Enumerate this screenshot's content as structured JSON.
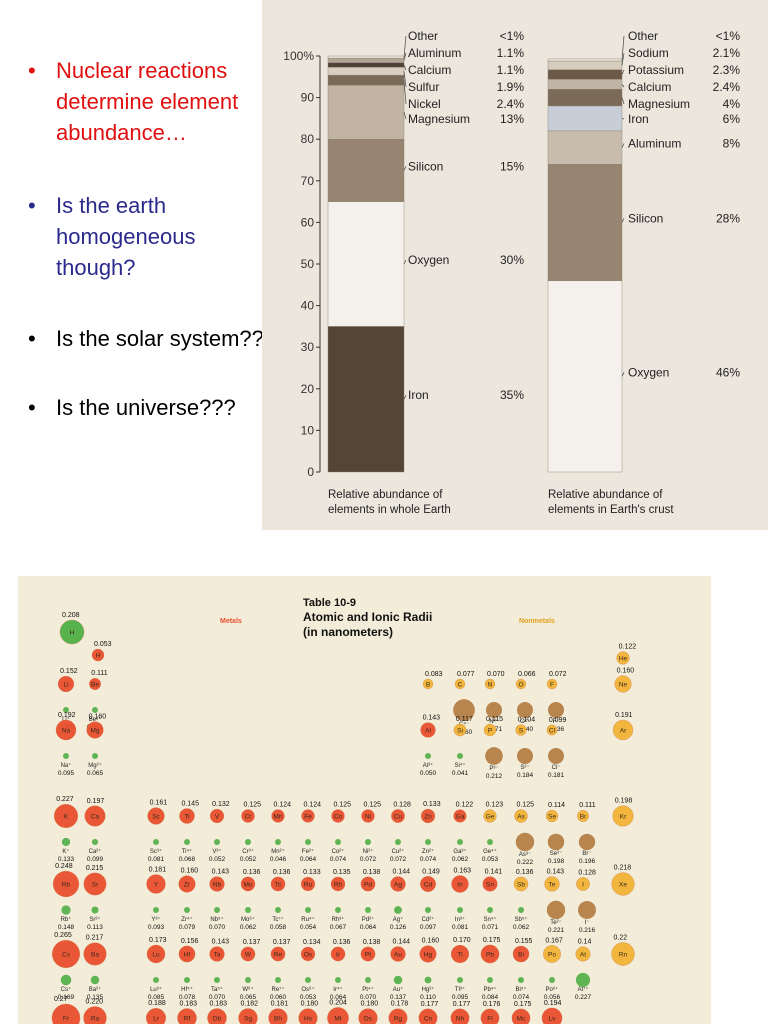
{
  "bullets": [
    {
      "text": "Nuclear reactions determine element abundance…",
      "color": "#e01010"
    },
    {
      "text": "Is the earth homogeneous though?",
      "color": "#2a2a8c"
    },
    {
      "text": "Is the solar system??",
      "color": "#000000"
    },
    {
      "text": "Is the universe???",
      "color": "#000000"
    }
  ],
  "chart_data": [
    {
      "type": "bar",
      "stacked": true,
      "caption": "Relative abundance of elements in whole Earth",
      "ylim": [
        0,
        100
      ],
      "yticks": [
        0,
        10,
        20,
        30,
        40,
        50,
        60,
        70,
        80,
        90,
        100
      ],
      "ytick_suffix_top": "%",
      "segments": [
        {
          "name": "Iron",
          "label": "35%",
          "value": 35,
          "color": "#554535"
        },
        {
          "name": "Oxygen",
          "label": "30%",
          "value": 30,
          "color": "#f4f1ec"
        },
        {
          "name": "Silicon",
          "label": "15%",
          "value": 15,
          "color": "#978571"
        },
        {
          "name": "Magnesium",
          "label": "13%",
          "value": 13,
          "color": "#c2b4a2"
        },
        {
          "name": "Nickel",
          "label": "2.4%",
          "value": 2.4,
          "color": "#7b6a58"
        },
        {
          "name": "Sulfur",
          "label": "1.9%",
          "value": 1.9,
          "color": "#d9cfc1"
        },
        {
          "name": "Calcium",
          "label": "1.1%",
          "value": 1.1,
          "color": "#4f4236"
        },
        {
          "name": "Aluminum",
          "label": "1.1%",
          "value": 1.1,
          "color": "#b3a593"
        },
        {
          "name": "Other",
          "label": "<1%",
          "value": 0.5,
          "color": "#ece6dd"
        }
      ]
    },
    {
      "type": "bar",
      "stacked": true,
      "caption": "Relative abundance of elements in Earth's crust",
      "ylim": [
        0,
        100
      ],
      "segments": [
        {
          "name": "Oxygen",
          "label": "46%",
          "value": 46,
          "color": "#f4f1ec"
        },
        {
          "name": "Silicon",
          "label": "28%",
          "value": 28,
          "color": "#978571"
        },
        {
          "name": "Aluminum",
          "label": "8%",
          "value": 8,
          "color": "#c8bcad"
        },
        {
          "name": "Iron",
          "label": "6%",
          "value": 6,
          "color": "#c7ced8"
        },
        {
          "name": "Magnesium",
          "label": "4%",
          "value": 4,
          "color": "#7b6a58"
        },
        {
          "name": "Calcium",
          "label": "2.4%",
          "value": 2.4,
          "color": "#bfb4a6"
        },
        {
          "name": "Potassium",
          "label": "2.3%",
          "value": 2.3,
          "color": "#6c5a48"
        },
        {
          "name": "Sodium",
          "label": "2.1%",
          "value": 2.1,
          "color": "#d6cdbf"
        },
        {
          "name": "Other",
          "label": "<1%",
          "value": 0.5,
          "color": "#ece6dd"
        }
      ]
    }
  ],
  "table": {
    "title_line1": "Table 10-9",
    "title_line2": "Atomic and Ionic Radii",
    "title_line3": "(in nanometers)",
    "metals_label": "Metals",
    "nonmetals_label": "Nonmetals",
    "colors": {
      "metal": "#e9502f",
      "nonmetal": "#f2b437",
      "cation": "#4fae46",
      "anion": "#b37a3f",
      "hydrogen_ion": "#4fae46"
    },
    "rows": [
      {
        "atoms": [
          {
            "sym": "H",
            "r": "0.208"
          },
          {
            "sym": "H",
            "r": "0.053"
          },
          {
            "sym": "He",
            "r": "0.122"
          }
        ]
      },
      {
        "atoms": [
          {
            "sym": "Li",
            "r": "0.152"
          },
          {
            "sym": "Be",
            "r": "0.111"
          },
          {
            "sym": "B",
            "r": "0.083"
          },
          {
            "sym": "C",
            "r": "0.077"
          },
          {
            "sym": "N",
            "r": "0.070"
          },
          {
            "sym": "O",
            "r": "0.066"
          },
          {
            "sym": "F",
            "r": "0.072"
          },
          {
            "sym": "Ne",
            "r": "0.160"
          }
        ],
        "ions": [
          {
            "sym": "Li⁺",
            "r": "0.068"
          },
          {
            "sym": "Be²⁺",
            "r": "0.031"
          },
          {
            "sym": "C⁴⁻",
            "r": "0.260"
          },
          {
            "sym": "N³⁻",
            "r": "0.171"
          },
          {
            "sym": "O²⁻",
            "r": "0.140"
          },
          {
            "sym": "F⁻",
            "r": "0.136"
          }
        ]
      },
      {
        "atoms": [
          {
            "sym": "Na",
            "r": "0.192"
          },
          {
            "sym": "Mg",
            "r": "0.160"
          },
          {
            "sym": "Al",
            "r": "0.143"
          },
          {
            "sym": "Si",
            "r": "0.117"
          },
          {
            "sym": "P",
            "r": "0.115"
          },
          {
            "sym": "S",
            "r": "0.104"
          },
          {
            "sym": "Cl",
            "r": "0.099"
          },
          {
            "sym": "Ar",
            "r": "0.191"
          }
        ],
        "ions": [
          {
            "sym": "Na⁺",
            "r": "0.095"
          },
          {
            "sym": "Mg²⁺",
            "r": "0.065"
          },
          {
            "sym": "Al³⁺",
            "r": "0.050"
          },
          {
            "sym": "Si⁴⁺",
            "r": "0.041"
          },
          {
            "sym": "P³⁻",
            "r": "0.212"
          },
          {
            "sym": "S²⁻",
            "r": "0.184"
          },
          {
            "sym": "Cl⁻",
            "r": "0.181"
          }
        ]
      },
      {
        "atoms": [
          {
            "sym": "K",
            "r": "0.227"
          },
          {
            "sym": "Ca",
            "r": "0.197"
          },
          {
            "sym": "Sc",
            "r": "0.161"
          },
          {
            "sym": "Ti",
            "r": "0.145"
          },
          {
            "sym": "V",
            "r": "0.132"
          },
          {
            "sym": "Cr",
            "r": "0.125"
          },
          {
            "sym": "Mn",
            "r": "0.124"
          },
          {
            "sym": "Fe",
            "r": "0.124"
          },
          {
            "sym": "Co",
            "r": "0.125"
          },
          {
            "sym": "Ni",
            "r": "0.125"
          },
          {
            "sym": "Cu",
            "r": "0.128"
          },
          {
            "sym": "Zn",
            "r": "0.133"
          },
          {
            "sym": "Ga",
            "r": "0.122"
          },
          {
            "sym": "Ge",
            "r": "0.123"
          },
          {
            "sym": "As",
            "r": "0.125"
          },
          {
            "sym": "Se",
            "r": "0.114"
          },
          {
            "sym": "Br",
            "r": "0.111"
          },
          {
            "sym": "Kr",
            "r": "0.198"
          }
        ],
        "ions": [
          {
            "sym": "K⁺",
            "r": "0.133"
          },
          {
            "sym": "Ca²⁺",
            "r": "0.099"
          },
          {
            "sym": "Sc³⁺",
            "r": "0.081"
          },
          {
            "sym": "Ti⁴⁺",
            "r": "0.068"
          },
          {
            "sym": "V³⁺",
            "r": "0.052"
          },
          {
            "sym": "Cr³⁺",
            "r": "0.052"
          },
          {
            "sym": "Mn²⁺",
            "r": "0.046"
          },
          {
            "sym": "Fe²⁺",
            "r": "0.064"
          },
          {
            "sym": "Co²⁺",
            "r": "0.074"
          },
          {
            "sym": "Ni²⁺",
            "r": "0.072"
          },
          {
            "sym": "Cu²⁺",
            "r": "0.072"
          },
          {
            "sym": "Zn²⁺",
            "r": "0.074"
          },
          {
            "sym": "Ga³⁺",
            "r": "0.062"
          },
          {
            "sym": "Ge⁴⁺",
            "r": "0.053"
          },
          {
            "sym": "As³⁻",
            "r": "0.222"
          },
          {
            "sym": "Se²⁻",
            "r": "0.198"
          },
          {
            "sym": "Br⁻",
            "r": "0.196"
          }
        ]
      },
      {
        "atoms": [
          {
            "sym": "Rb",
            "r": "0.248"
          },
          {
            "sym": "Sr",
            "r": "0.215"
          },
          {
            "sym": "Y",
            "r": "0.181"
          },
          {
            "sym": "Zr",
            "r": "0.160"
          },
          {
            "sym": "Nb",
            "r": "0.143"
          },
          {
            "sym": "Mo",
            "r": "0.136"
          },
          {
            "sym": "Tc",
            "r": "0.136"
          },
          {
            "sym": "Ru",
            "r": "0.133"
          },
          {
            "sym": "Rh",
            "r": "0.135"
          },
          {
            "sym": "Pd",
            "r": "0.138"
          },
          {
            "sym": "Ag",
            "r": "0.144"
          },
          {
            "sym": "Cd",
            "r": "0.149"
          },
          {
            "sym": "In",
            "r": "0.163"
          },
          {
            "sym": "Sn",
            "r": "0.141"
          },
          {
            "sym": "Sb",
            "r": "0.136"
          },
          {
            "sym": "Te",
            "r": "0.143"
          },
          {
            "sym": "I",
            "r": "0.128"
          },
          {
            "sym": "Xe",
            "r": "0.218"
          }
        ],
        "ions": [
          {
            "sym": "Rb⁺",
            "r": "0.148"
          },
          {
            "sym": "Sr²⁺",
            "r": "0.113"
          },
          {
            "sym": "Y³⁺",
            "r": "0.093"
          },
          {
            "sym": "Zr⁴⁺",
            "r": "0.079"
          },
          {
            "sym": "Nb⁵⁺",
            "r": "0.070"
          },
          {
            "sym": "Mo⁶⁺",
            "r": "0.062"
          },
          {
            "sym": "Tc⁷⁺",
            "r": "0.058"
          },
          {
            "sym": "Ru⁴⁺",
            "r": "0.054"
          },
          {
            "sym": "Rh³⁺",
            "r": "0.067"
          },
          {
            "sym": "Pd²⁺",
            "r": "0.064"
          },
          {
            "sym": "Ag⁺",
            "r": "0.126"
          },
          {
            "sym": "Cd²⁺",
            "r": "0.097"
          },
          {
            "sym": "In³⁺",
            "r": "0.081"
          },
          {
            "sym": "Sn⁴⁺",
            "r": "0.071"
          },
          {
            "sym": "Sb⁵⁺",
            "r": "0.062"
          },
          {
            "sym": "Te²⁻",
            "r": "0.221"
          },
          {
            "sym": "I⁻",
            "r": "0.216"
          }
        ]
      },
      {
        "atoms": [
          {
            "sym": "Cs",
            "r": "0.265"
          },
          {
            "sym": "Ba",
            "r": "0.217"
          },
          {
            "sym": "Lu",
            "r": "0.173"
          },
          {
            "sym": "Hf",
            "r": "0.156"
          },
          {
            "sym": "Ta",
            "r": "0.143"
          },
          {
            "sym": "W",
            "r": "0.137"
          },
          {
            "sym": "Re",
            "r": "0.137"
          },
          {
            "sym": "Os",
            "r": "0.134"
          },
          {
            "sym": "Ir",
            "r": "0.136"
          },
          {
            "sym": "Pt",
            "r": "0.138"
          },
          {
            "sym": "Au",
            "r": "0.144"
          },
          {
            "sym": "Hg",
            "r": "0.160"
          },
          {
            "sym": "Tl",
            "r": "0.170"
          },
          {
            "sym": "Pb",
            "r": "0.175"
          },
          {
            "sym": "Bi",
            "r": "0.155"
          },
          {
            "sym": "Po",
            "r": "0.167"
          },
          {
            "sym": "At",
            "r": "0.14"
          },
          {
            "sym": "Rn",
            "r": "0.22"
          }
        ],
        "ions": [
          {
            "sym": "Cs⁺",
            "r": "0.169"
          },
          {
            "sym": "Ba²⁺",
            "r": "0.135"
          },
          {
            "sym": "Lu³⁺",
            "r": "0.085"
          },
          {
            "sym": "Hf⁴⁺",
            "r": "0.078"
          },
          {
            "sym": "Ta⁵⁺",
            "r": "0.070"
          },
          {
            "sym": "W⁶⁺",
            "r": "0.065"
          },
          {
            "sym": "Re⁷⁺",
            "r": "0.060"
          },
          {
            "sym": "Os⁶⁺",
            "r": "0.053"
          },
          {
            "sym": "Ir⁴⁺",
            "r": "0.064"
          },
          {
            "sym": "Pt⁴⁺",
            "r": "0.070"
          },
          {
            "sym": "Au⁺",
            "r": "0.137"
          },
          {
            "sym": "Hg²⁺",
            "r": "0.110"
          },
          {
            "sym": "Tl³⁺",
            "r": "0.095"
          },
          {
            "sym": "Pb⁴⁺",
            "r": "0.084"
          },
          {
            "sym": "Bi⁵⁺",
            "r": "0.074"
          },
          {
            "sym": "Po⁶⁺",
            "r": "0.056"
          },
          {
            "sym": "At⁷⁺",
            "r": "0.227"
          }
        ]
      },
      {
        "atoms": [
          {
            "sym": "Fr",
            "r": "0.27"
          },
          {
            "sym": "Ra",
            "r": "0.220"
          },
          {
            "sym": "Lr",
            "r": "0.188"
          },
          {
            "sym": "Rf",
            "r": "0.183"
          },
          {
            "sym": "Db",
            "r": "0.183"
          },
          {
            "sym": "Sg",
            "r": "0.182"
          },
          {
            "sym": "Bh",
            "r": "0.181"
          },
          {
            "sym": "Hs",
            "r": "0.180"
          },
          {
            "sym": "Mt",
            "r": "0.204"
          },
          {
            "sym": "Ds",
            "r": "0.180"
          },
          {
            "sym": "Rg",
            "r": "0.178"
          },
          {
            "sym": "Cn",
            "r": "0.177"
          },
          {
            "sym": "Nh",
            "r": "0.177"
          },
          {
            "sym": "Fl",
            "r": "0.176"
          },
          {
            "sym": "Mc",
            "r": "0.175"
          },
          {
            "sym": "Lv",
            "r": "0.194"
          }
        ]
      }
    ]
  }
}
